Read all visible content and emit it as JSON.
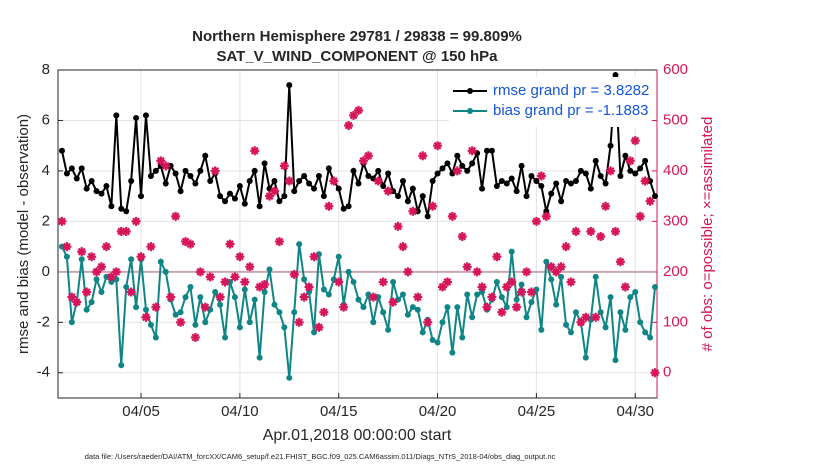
{
  "chart_data": {
    "type": "line",
    "title": "Northern Hemisphere 29781 / 29838 = 99.809%",
    "subtitle": "SAT_V_WIND_COMPONENT @ 150 hPa",
    "xlabel": "Apr.01,2018 00:00:00 start",
    "ylabel": "rmse and bias (model - observation)",
    "y2label": "# of obs: o=possible; ×=assimilated",
    "footnote": "data file: /Users/raeder/DAI/ATM_forcXX/CAM6_setup/f.e21.FHIST_BGC.f09_025.CAM6assim.011/Diags_NTrS_2018-04/obs_diag_output.nc",
    "xlim": [
      -0.2,
      30.1
    ],
    "xticks": [
      {
        "value": 4,
        "label": "04/05"
      },
      {
        "value": 9,
        "label": "04/10"
      },
      {
        "value": 14,
        "label": "04/15"
      },
      {
        "value": 19,
        "label": "04/20"
      },
      {
        "value": 24,
        "label": "04/25"
      },
      {
        "value": 29,
        "label": "04/30"
      }
    ],
    "ylim": [
      -5,
      8
    ],
    "yticks": [
      -4,
      -2,
      0,
      2,
      4,
      6,
      8
    ],
    "y2lim": [
      -50,
      600
    ],
    "y2ticks": [
      0,
      100,
      200,
      300,
      400,
      500,
      600
    ],
    "grid": true,
    "legend": "upper right",
    "x": [
      0,
      0.25,
      0.5,
      0.75,
      1,
      1.25,
      1.5,
      1.75,
      2,
      2.25,
      2.5,
      2.75,
      3,
      3.25,
      3.5,
      3.75,
      4,
      4.25,
      4.5,
      4.75,
      5,
      5.25,
      5.5,
      5.75,
      6,
      6.25,
      6.5,
      6.75,
      7,
      7.25,
      7.5,
      7.75,
      8,
      8.25,
      8.5,
      8.75,
      9,
      9.25,
      9.5,
      9.75,
      10,
      10.25,
      10.5,
      10.75,
      11,
      11.25,
      11.5,
      11.75,
      12,
      12.25,
      12.5,
      12.75,
      13,
      13.25,
      13.5,
      13.75,
      14,
      14.25,
      14.5,
      14.75,
      15,
      15.25,
      15.5,
      15.75,
      16,
      16.25,
      16.5,
      16.75,
      17,
      17.25,
      17.5,
      17.75,
      18,
      18.25,
      18.5,
      18.75,
      19,
      19.25,
      19.5,
      19.75,
      20,
      20.25,
      20.5,
      20.75,
      21,
      21.25,
      21.5,
      21.75,
      22,
      22.25,
      22.5,
      22.75,
      23,
      23.25,
      23.5,
      23.75,
      24,
      24.25,
      24.5,
      24.75,
      25,
      25.25,
      25.5,
      25.75,
      26,
      26.25,
      26.5,
      26.75,
      27,
      27.25,
      27.5,
      27.75,
      28,
      28.25,
      28.5,
      28.75,
      29,
      29.25,
      29.5,
      29.75,
      30
    ],
    "series": [
      {
        "name": "rmse grand pr = 3.8282",
        "color": "#000000",
        "values": [
          4.8,
          3.9,
          4.1,
          3.7,
          4.1,
          3.3,
          3.6,
          3.2,
          3.1,
          3.4,
          2.6,
          6.2,
          2.5,
          2.4,
          3.6,
          6.1,
          3.0,
          6.2,
          3.8,
          4.0,
          4.2,
          3.5,
          4.2,
          3.9,
          3.2,
          4.0,
          3.8,
          3.5,
          4.0,
          4.6,
          3.6,
          3.9,
          3.0,
          2.8,
          3.1,
          2.9,
          3.4,
          2.7,
          3.6,
          4.0,
          2.6,
          4.3,
          3.3,
          3.6,
          2.8,
          3.0,
          7.4,
          3.2,
          3.6,
          3.8,
          3.5,
          3.3,
          3.8,
          3.0,
          4.1,
          3.6,
          3.3,
          2.5,
          2.6,
          4.0,
          3.5,
          4.3,
          3.8,
          3.7,
          4.0,
          3.4,
          3.9,
          3.2,
          3.0,
          3.6,
          2.8,
          3.3,
          2.4,
          3.0,
          2.2,
          3.6,
          3.9,
          4.1,
          4.3,
          3.9,
          4.6,
          4.2,
          4.0,
          4.3,
          4.7,
          3.3,
          4.8,
          4.8,
          3.4,
          3.6,
          3.5,
          3.7,
          3.2,
          4.2,
          3.0,
          3.8,
          3.6,
          3.4,
          2.4,
          3.1,
          3.5,
          2.8,
          3.6,
          3.5,
          3.6,
          4.0,
          3.9,
          3.3,
          4.4,
          3.8,
          3.5,
          5.0,
          7.8,
          3.8,
          4.6,
          4.0,
          3.9,
          4.1,
          4.4,
          3.6,
          3.0
        ]
      },
      {
        "name": "bias grand pr = -1.1883",
        "color": "#0f8585",
        "values": [
          1.0,
          0.6,
          -2.0,
          -1.2,
          0.5,
          -1.5,
          -1.2,
          -0.3,
          -0.8,
          -0.2,
          -0.4,
          -0.3,
          -3.7,
          -0.6,
          0.5,
          -1.4,
          0.5,
          -1.5,
          -2.1,
          -2.6,
          0.4,
          0.0,
          -1.1,
          -1.7,
          -1.6,
          -1.0,
          -0.6,
          -2.1,
          -1.0,
          -2.0,
          -1.5,
          -0.8,
          -1.3,
          -2.6,
          -0.4,
          -1.0,
          -2.2,
          -0.7,
          -2.0,
          -1.1,
          -3.4,
          -0.8,
          0.1,
          -1.3,
          -1.6,
          -2.2,
          -4.2,
          -1.6,
          1.1,
          -0.3,
          -0.8,
          -2.4,
          0.7,
          -0.7,
          -0.9,
          -0.3,
          0.6,
          -1.3,
          0.0,
          -0.4,
          -1.1,
          -1.4,
          -0.9,
          -2.0,
          -1.0,
          -1.6,
          -2.3,
          -0.4,
          -1.1,
          -0.9,
          -1.7,
          -1.4,
          -1.5,
          -2.4,
          -1.9,
          -2.7,
          -2.8,
          -2.0,
          -1.4,
          -3.2,
          -1.4,
          -2.6,
          -0.9,
          -1.8,
          -0.9,
          -0.8,
          -1.5,
          -1.1,
          -0.4,
          -1.0,
          -1.4,
          0.8,
          -1.1,
          -0.5,
          -1.8,
          -1.2,
          -0.7,
          -2.3,
          0.4,
          -0.3,
          -1.3,
          -0.2,
          -2.1,
          -2.4,
          -1.6,
          -2.0,
          -3.4,
          -1.9,
          -0.2,
          -1.6,
          -2.2,
          -1.0,
          -3.5,
          -1.6,
          -2.3,
          -1.0,
          -0.8,
          -2.0,
          -2.4,
          -2.6,
          -0.6
        ]
      },
      {
        "color": "#d6155a",
        "axis": "y2",
        "values": [
          300,
          250,
          150,
          140,
          240,
          160,
          230,
          200,
          210,
          250,
          190,
          200,
          280,
          280,
          160,
          300,
          230,
          110,
          250,
          130,
          420,
          410,
          150,
          310,
          100,
          260,
          255,
          70,
          200,
          130,
          190,
          400,
          150,
          180,
          255,
          190,
          230,
          180,
          210,
          440,
          170,
          175,
          350,
          360,
          260,
          410,
          380,
          195,
          100,
          150,
          170,
          230,
          90,
          120,
          330,
          380,
          180,
          130,
          490,
          510,
          520,
          420,
          430,
          150,
          380,
          180,
          360,
          140,
          290,
          250,
          200,
          320,
          150,
          430,
          100,
          330,
          450,
          170,
          180,
          310,
          400,
          270,
          210,
          440,
          200,
          170,
          130,
          150,
          230,
          120,
          170,
          180,
          130,
          160,
          200,
          160,
          300,
          390,
          310,
          210,
          200,
          210,
          250,
          180,
          280,
          100,
          110,
          280,
          110,
          270,
          330,
          400,
          280,
          220,
          170,
          420,
          460,
          310,
          380,
          340,
          0
        ]
      }
    ]
  }
}
